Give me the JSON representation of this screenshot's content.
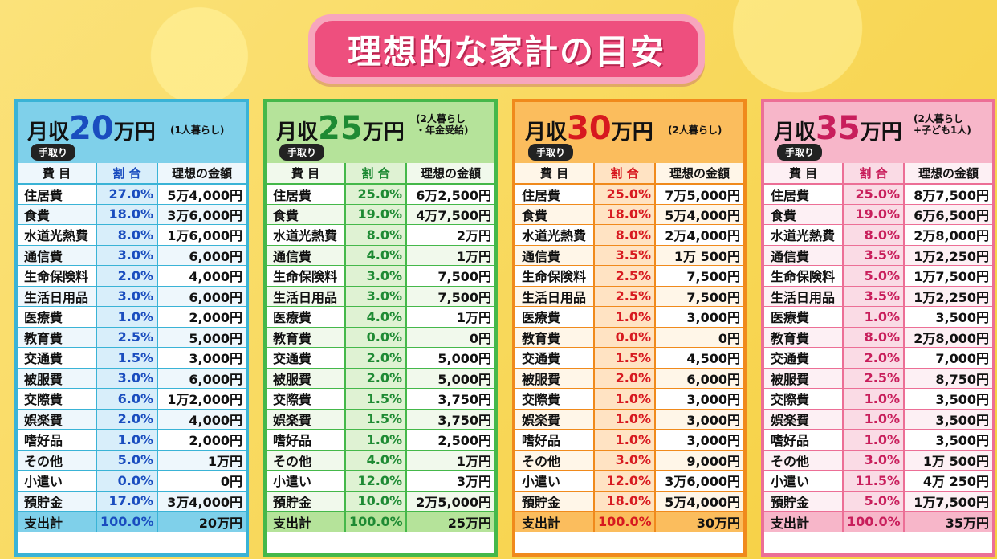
{
  "title": "理想的な家計の目安",
  "columns": [
    "費 目",
    "割 合",
    "理想の金額"
  ],
  "tedori": "手取り",
  "income_prefix": "月収",
  "income_suffix": "万円",
  "categories": [
    "住居費",
    "食費",
    "水道光熱費",
    "通信費",
    "生命保険料",
    "生活日用品",
    "医療費",
    "教育費",
    "交通費",
    "被服費",
    "交際費",
    "娯楽費",
    "嗜好品",
    "その他",
    "小遣い",
    "預貯金",
    "支出計"
  ],
  "panels": [
    {
      "amount": "20",
      "note": "(1人暮らし)",
      "colors": {
        "border": "#3ab3d6",
        "header": "#7fd0ea",
        "pct": "#1a4dbf",
        "row": "#eef7fc",
        "pctbg": "#d8eefa"
      },
      "pct": [
        "27.0%",
        "18.0%",
        "8.0%",
        "3.0%",
        "2.0%",
        "3.0%",
        "1.0%",
        "2.5%",
        "1.5%",
        "3.0%",
        "6.0%",
        "2.0%",
        "1.0%",
        "5.0%",
        "0.0%",
        "17.0%",
        "100.0%"
      ],
      "amt": [
        "5万4,000円",
        "3万6,000円",
        "1万6,000円",
        "6,000円",
        "4,000円",
        "6,000円",
        "2,000円",
        "5,000円",
        "3,000円",
        "6,000円",
        "1万2,000円",
        "4,000円",
        "2,000円",
        "1万円",
        "0円",
        "3万4,000円",
        "20万円"
      ]
    },
    {
      "amount": "25",
      "note": "(2人暮らし\n・年金受給)",
      "colors": {
        "border": "#45b84a",
        "header": "#b5e39a",
        "pct": "#1e8a33",
        "row": "#f1f9ec",
        "pctbg": "#dff2d3"
      },
      "pct": [
        "25.0%",
        "19.0%",
        "8.0%",
        "4.0%",
        "3.0%",
        "3.0%",
        "4.0%",
        "0.0%",
        "2.0%",
        "2.0%",
        "1.5%",
        "1.5%",
        "1.0%",
        "4.0%",
        "12.0%",
        "10.0%",
        "100.0%"
      ],
      "amt": [
        "6万2,500円",
        "4万7,500円",
        "2万円",
        "1万円",
        "7,500円",
        "7,500円",
        "1万円",
        "0円",
        "5,000円",
        "5,000円",
        "3,750円",
        "3,750円",
        "2,500円",
        "1万円",
        "3万円",
        "2万5,000円",
        "25万円"
      ]
    },
    {
      "amount": "30",
      "note": "(2人暮らし)",
      "colors": {
        "border": "#f08a1c",
        "header": "#fbbd5d",
        "pct": "#d7191f",
        "row": "#fff6e8",
        "pctbg": "#ffe3c3"
      },
      "pct": [
        "25.0%",
        "18.0%",
        "8.0%",
        "3.5%",
        "2.5%",
        "2.5%",
        "1.0%",
        "0.0%",
        "1.5%",
        "2.0%",
        "1.0%",
        "1.0%",
        "1.0%",
        "3.0%",
        "12.0%",
        "18.0%",
        "100.0%"
      ],
      "amt": [
        "7万5,000円",
        "5万4,000円",
        "2万4,000円",
        "1万 500円",
        "7,500円",
        "7,500円",
        "3,000円",
        "0円",
        "4,500円",
        "6,000円",
        "3,000円",
        "3,000円",
        "3,000円",
        "9,000円",
        "3万6,000円",
        "5万4,000円",
        "30万円"
      ]
    },
    {
      "amount": "35",
      "note": "(2人暮らし\n+子ども1人)",
      "colors": {
        "border": "#ec6f96",
        "header": "#f7b6c9",
        "pct": "#c81e5b",
        "row": "#fdf0f4",
        "pctbg": "#fadbe5"
      },
      "pct": [
        "25.0%",
        "19.0%",
        "8.0%",
        "3.5%",
        "5.0%",
        "3.5%",
        "1.0%",
        "8.0%",
        "2.0%",
        "2.5%",
        "1.0%",
        "1.0%",
        "1.0%",
        "3.0%",
        "11.5%",
        "5.0%",
        "100.0%"
      ],
      "amt": [
        "8万7,500円",
        "6万6,500円",
        "2万8,000円",
        "1万2,250円",
        "1万7,500円",
        "1万2,250円",
        "3,500円",
        "2万8,000円",
        "7,000円",
        "8,750円",
        "3,500円",
        "3,500円",
        "3,500円",
        "1万 500円",
        "4万 250円",
        "1万7,500円",
        "35万円"
      ]
    }
  ]
}
